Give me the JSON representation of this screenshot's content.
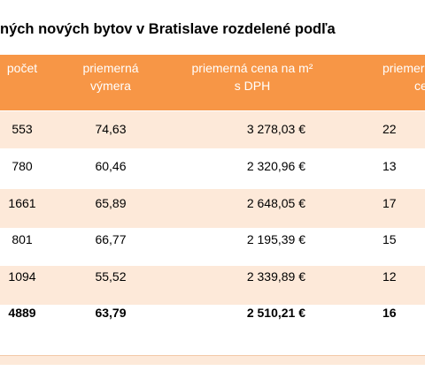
{
  "title": "ných nových bytov v Bratislave rozdelené podľa",
  "table": {
    "header": [
      [
        "počet"
      ],
      [
        "priemerná",
        "výmera"
      ],
      [
        "priemerná cena na m²",
        "s DPH"
      ],
      [
        "priemer",
        "ce"
      ]
    ],
    "rows": [
      [
        "553",
        "74,63",
        "3 278,03 €",
        "22"
      ],
      [
        "780",
        "60,46",
        "2 320,96 €",
        "13"
      ],
      [
        "1661",
        "65,89",
        "2 648,05 €",
        "17"
      ],
      [
        "801",
        "66,77",
        "2 195,39 €",
        "15"
      ],
      [
        "1094",
        "55,52",
        "2 339,89 €",
        "12"
      ],
      [
        "4889",
        "63,79",
        "2 510,21 €",
        "16"
      ]
    ]
  }
}
